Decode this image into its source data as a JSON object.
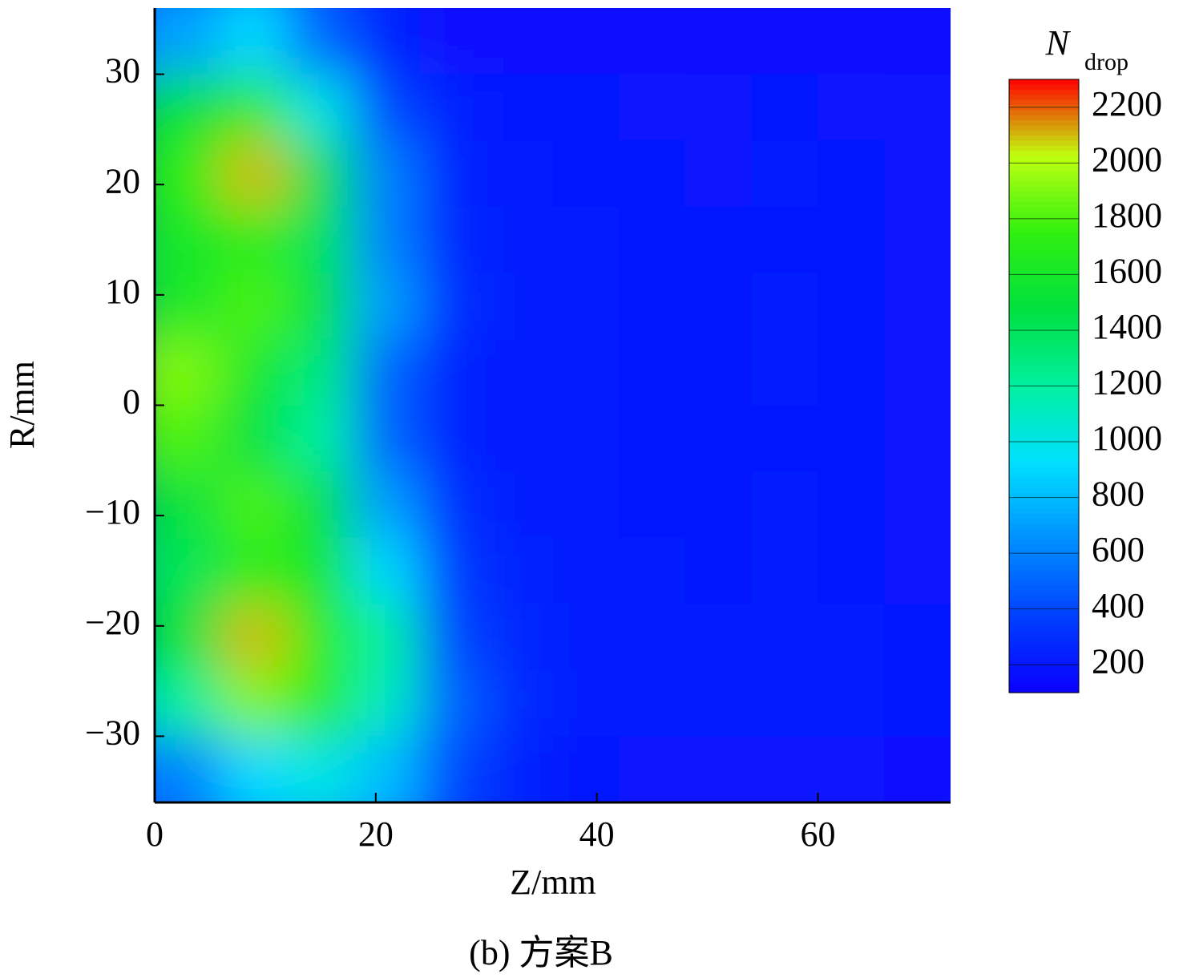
{
  "chart_data": {
    "type": "heatmap",
    "x_label": "Z/mm",
    "y_label": "R/mm",
    "caption": "(b) 方案B",
    "colorbar_label": "N",
    "colorbar_label_sub": "drop",
    "x": [
      3,
      9,
      15,
      21,
      27,
      33,
      39,
      45,
      51,
      57,
      63,
      69
    ],
    "y": [
      33,
      27,
      21,
      15,
      9,
      3,
      -3,
      -9,
      -15,
      -21,
      -27,
      -33
    ],
    "z": [
      [
        700,
        900,
        500,
        250,
        170,
        160,
        160,
        150,
        150,
        160,
        150,
        150
      ],
      [
        1500,
        1700,
        1000,
        400,
        250,
        200,
        200,
        190,
        180,
        200,
        190,
        180
      ],
      [
        1700,
        2100,
        1500,
        600,
        250,
        210,
        200,
        200,
        190,
        210,
        200,
        190
      ],
      [
        1600,
        1700,
        1400,
        600,
        260,
        220,
        210,
        200,
        200,
        200,
        200,
        190
      ],
      [
        1600,
        1800,
        1500,
        700,
        300,
        230,
        210,
        200,
        200,
        210,
        200,
        190
      ],
      [
        1900,
        1600,
        1300,
        500,
        250,
        220,
        210,
        200,
        200,
        210,
        200,
        190
      ],
      [
        1800,
        1500,
        1200,
        500,
        250,
        220,
        210,
        200,
        200,
        200,
        200,
        190
      ],
      [
        1500,
        1800,
        1500,
        700,
        300,
        230,
        210,
        200,
        200,
        210,
        200,
        190
      ],
      [
        1400,
        1700,
        1600,
        900,
        350,
        250,
        220,
        210,
        200,
        210,
        200,
        190
      ],
      [
        1500,
        2100,
        1700,
        1200,
        400,
        270,
        230,
        210,
        210,
        220,
        210,
        200
      ],
      [
        1200,
        1900,
        1700,
        1100,
        500,
        280,
        230,
        220,
        210,
        230,
        210,
        200
      ],
      [
        600,
        900,
        1000,
        800,
        400,
        250,
        200,
        190,
        180,
        190,
        180,
        170
      ]
    ],
    "colormap": [
      "#0a00ff",
      "#0040ff",
      "#0090ff",
      "#00e0ff",
      "#00f0a0",
      "#00e040",
      "#30f010",
      "#c0ff10",
      "#ff0000"
    ],
    "xlim": [
      0,
      72
    ],
    "ylim": [
      -36,
      36
    ],
    "xticks": [
      0,
      20,
      40,
      60
    ],
    "yticks": [
      {
        "value": -30,
        "label": "−30"
      },
      {
        "value": -20,
        "label": "−20"
      },
      {
        "value": -10,
        "label": "−10"
      },
      0,
      10,
      20,
      30
    ],
    "clim": [
      100,
      2300
    ],
    "cticks": [
      200,
      400,
      600,
      800,
      1000,
      1200,
      1400,
      1600,
      1800,
      2000,
      2200
    ]
  }
}
